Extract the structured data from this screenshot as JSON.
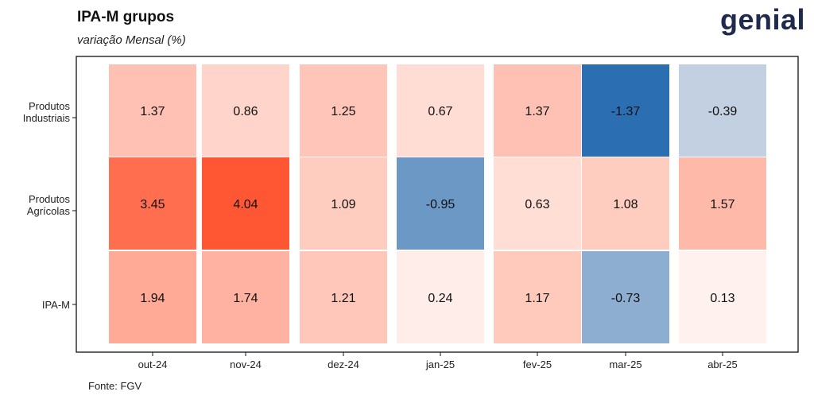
{
  "header": {
    "title": "IPA-M grupos",
    "subtitle": "variação Mensal (%)"
  },
  "brand": {
    "logo_text": "genial",
    "logo_icon": "genial-logo-icon",
    "logo_color": "#1f2a4d"
  },
  "footer": {
    "source": "Fonte: FGV"
  },
  "chart_data": {
    "type": "heatmap",
    "title": "IPA-M grupos",
    "subtitle": "variação Mensal (%)",
    "xlabel": "",
    "ylabel": "",
    "x_categories": [
      "out-24",
      "nov-24",
      "dez-24",
      "jan-25",
      "fev-25",
      "mar-25",
      "abr-25"
    ],
    "y_categories": [
      {
        "line1": "Produtos",
        "line2": "Industriais"
      },
      {
        "line1": "Produtos",
        "line2": "Agrícolas"
      },
      {
        "line1": "IPA-M",
        "line2": ""
      }
    ],
    "values": [
      [
        1.37,
        0.86,
        1.25,
        0.67,
        1.37,
        -1.37,
        -0.39
      ],
      [
        3.45,
        4.04,
        1.09,
        -0.95,
        0.63,
        1.08,
        1.57
      ],
      [
        1.94,
        1.74,
        1.21,
        0.24,
        1.17,
        -0.73,
        0.13
      ]
    ],
    "value_labels": [
      [
        "1.37",
        "0.86",
        "1.25",
        "0.67",
        "1.37",
        "-1.37",
        "-0.39"
      ],
      [
        "3.45",
        "4.04",
        "1.09",
        "-0.95",
        "0.63",
        "1.08",
        "1.57"
      ],
      [
        "1.94",
        "1.74",
        "1.21",
        "0.24",
        "1.17",
        "-0.73",
        "0.13"
      ]
    ],
    "color_scale": {
      "negative_max": "#2b6eb2",
      "zero": "#fff7f4",
      "positive_max": "#ff5733",
      "neg_limit": -1.37,
      "pos_limit": 4.04
    },
    "grid": false,
    "legend": "none"
  }
}
